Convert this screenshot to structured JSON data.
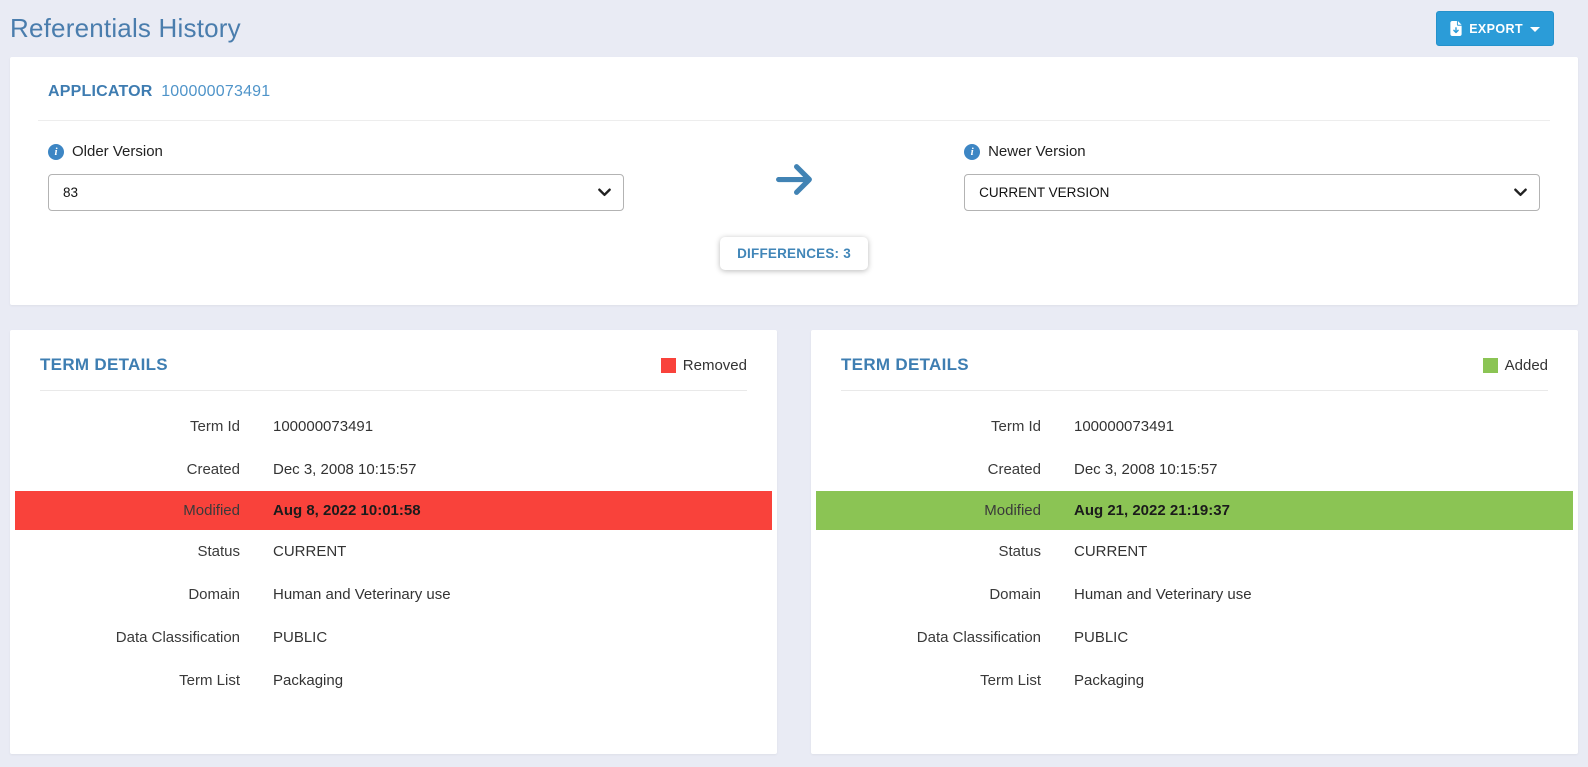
{
  "page": {
    "title": "Referentials History"
  },
  "toolbar": {
    "export_label": "EXPORT"
  },
  "applicator": {
    "label": "APPLICATOR",
    "id": "100000073491"
  },
  "compare": {
    "older": {
      "label": "Older Version",
      "selected": "83"
    },
    "newer": {
      "label": "Newer Version",
      "selected": "CURRENT VERSION"
    },
    "differences_label": "DIFFERENCES: 3"
  },
  "panels": [
    {
      "title": "TERM DETAILS",
      "legend": {
        "label": "Removed",
        "color": "#f9423b"
      },
      "rows": [
        {
          "label": "Term Id",
          "value": "100000073491",
          "highlight": false
        },
        {
          "label": "Created",
          "value": "Dec 3, 2008 10:15:57",
          "highlight": false
        },
        {
          "label": "Modified",
          "value": "Aug 8, 2022 10:01:58",
          "highlight": true
        },
        {
          "label": "Status",
          "value": "CURRENT",
          "highlight": false
        },
        {
          "label": "Domain",
          "value": "Human and Veterinary use",
          "highlight": false
        },
        {
          "label": "Data Classification",
          "value": "PUBLIC",
          "highlight": false
        },
        {
          "label": "Term List",
          "value": "Packaging",
          "highlight": false
        }
      ]
    },
    {
      "title": "TERM DETAILS",
      "legend": {
        "label": "Added",
        "color": "#8bc454"
      },
      "rows": [
        {
          "label": "Term Id",
          "value": "100000073491",
          "highlight": false
        },
        {
          "label": "Created",
          "value": "Dec 3, 2008 10:15:57",
          "highlight": false
        },
        {
          "label": "Modified",
          "value": "Aug 21, 2022 21:19:37",
          "highlight": true
        },
        {
          "label": "Status",
          "value": "CURRENT",
          "highlight": false
        },
        {
          "label": "Domain",
          "value": "Human and Veterinary use",
          "highlight": false
        },
        {
          "label": "Data Classification",
          "value": "PUBLIC",
          "highlight": false
        },
        {
          "label": "Term List",
          "value": "Packaging",
          "highlight": false
        }
      ]
    }
  ],
  "colors": {
    "page_background": "#e9ebf4",
    "title_blue": "#4a7dad",
    "heading_blue": "#3e7eb2",
    "export_button_blue": "#2b9cd8",
    "arrow_blue": "#4183b4",
    "removed_red": "#f9423b",
    "added_green": "#8bc454"
  }
}
